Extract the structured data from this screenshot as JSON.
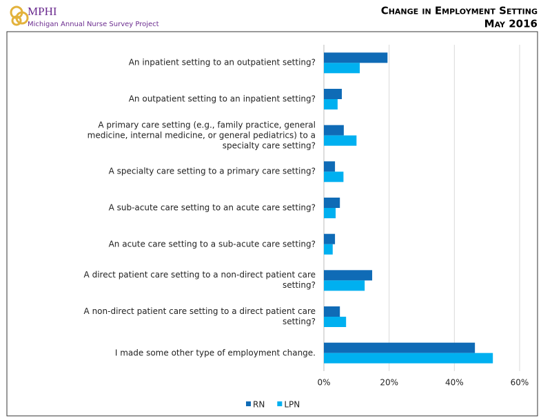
{
  "header": {
    "logo": "MPHI",
    "organization": "Michigan Annual Nurse Survey Project"
  },
  "chart_data": {
    "type": "bar",
    "orientation": "horizontal",
    "title": "Change in Employment Setting",
    "subtitle": "May 2016",
    "categories": [
      "An inpatient setting to an outpatient setting?",
      "An outpatient setting to an inpatient setting?",
      "A primary care setting (e.g., family practice, general medicine, internal medicine, or general pediatrics) to a specialty care setting?",
      "A specialty care setting to a primary care setting?",
      "A sub-acute care setting to an acute care setting?",
      "An acute care setting to a sub-acute care setting?",
      "A direct patient care setting to a non-direct patient care setting?",
      "A non-direct patient care setting to a direct patient care setting?",
      "I made some other type of employment change."
    ],
    "series": [
      {
        "name": "RN",
        "color": "#0f6bb6",
        "values": [
          19.5,
          5.5,
          6.1,
          3.4,
          4.9,
          3.4,
          14.8,
          4.9,
          46.3
        ]
      },
      {
        "name": "LPN",
        "color": "#00b0f0",
        "values": [
          11,
          4.2,
          10,
          6,
          3.6,
          2.7,
          12.5,
          6.8,
          51.8
        ]
      }
    ],
    "xlim": [
      0,
      60
    ],
    "xticks": [
      {
        "value": 0,
        "label": "0%"
      },
      {
        "value": 20,
        "label": "20%"
      },
      {
        "value": 40,
        "label": "40%"
      },
      {
        "value": 60,
        "label": "60%"
      }
    ],
    "grid": true,
    "legend": "bottom"
  }
}
